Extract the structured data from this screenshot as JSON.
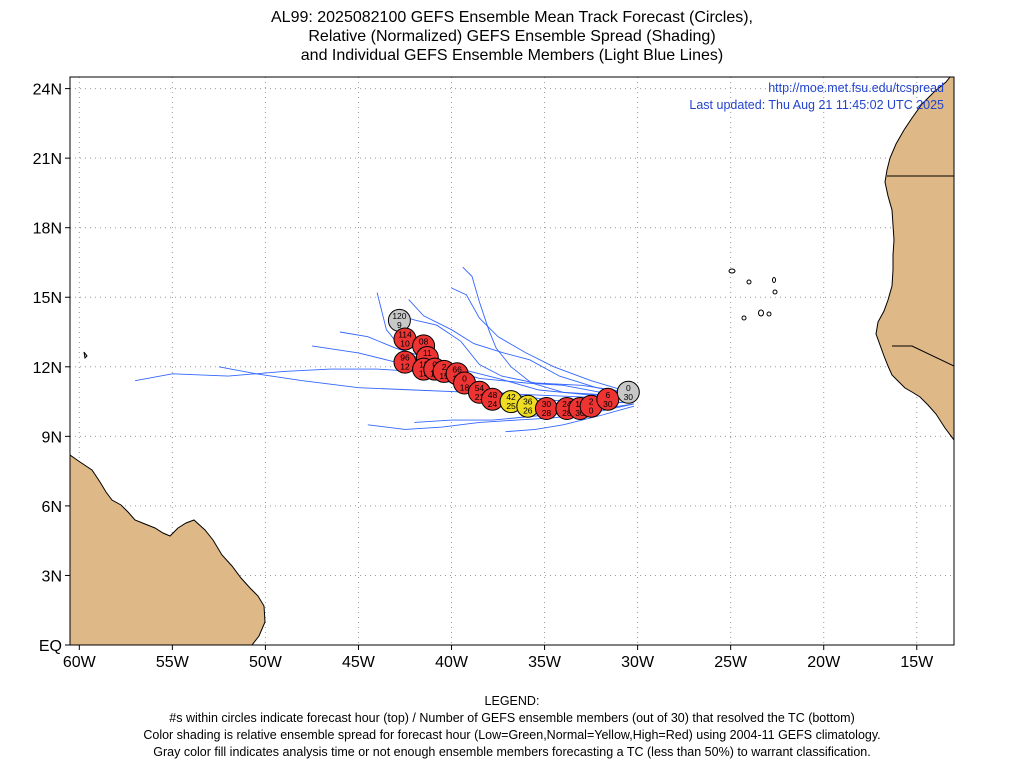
{
  "title": {
    "line1": "AL99: 2025082100 GEFS Ensemble Mean Track Forecast (Circles),",
    "line2": "Relative (Normalized) GEFS Ensemble Spread (Shading)",
    "line3": "and Individual GEFS Ensemble Members (Light Blue Lines)"
  },
  "annotations": {
    "url": "http://moe.met.fsu.edu/tcspread",
    "updated": "Last updated: Thu Aug 21 11:45:02 UTC 2025"
  },
  "axes": {
    "lon_range": [
      -60.5,
      -13
    ],
    "lat_range": [
      0,
      24.5
    ],
    "x_ticks": [
      {
        "lon": -60,
        "label": "60W"
      },
      {
        "lon": -55,
        "label": "55W"
      },
      {
        "lon": -50,
        "label": "50W"
      },
      {
        "lon": -45,
        "label": "45W"
      },
      {
        "lon": -40,
        "label": "40W"
      },
      {
        "lon": -35,
        "label": "35W"
      },
      {
        "lon": -30,
        "label": "30W"
      },
      {
        "lon": -25,
        "label": "25W"
      },
      {
        "lon": -20,
        "label": "20W"
      },
      {
        "lon": -15,
        "label": "15W"
      }
    ],
    "y_ticks": [
      {
        "lat": 0,
        "label": "EQ"
      },
      {
        "lat": 3,
        "label": "3N"
      },
      {
        "lat": 6,
        "label": "6N"
      },
      {
        "lat": 9,
        "label": "9N"
      },
      {
        "lat": 12,
        "label": "12N"
      },
      {
        "lat": 15,
        "label": "15N"
      },
      {
        "lat": 18,
        "label": "18N"
      },
      {
        "lat": 21,
        "label": "21N"
      },
      {
        "lat": 24,
        "label": "24N"
      }
    ],
    "grid": true
  },
  "colors": {
    "land": "#deb887",
    "member_track": "#3366ff",
    "spread_high": "#ee3333",
    "spread_normal": "#eedd22",
    "analysis": "#c8c8c8",
    "annotation": "#2244cc"
  },
  "chart_data": {
    "type": "scatter",
    "mean_track": [
      {
        "hour": "120",
        "members": "9",
        "lon": -42.8,
        "lat": 14.0,
        "spread": "gray"
      },
      {
        "hour": "114",
        "members": "10",
        "lon": -42.5,
        "lat": 13.2,
        "spread": "high"
      },
      {
        "hour": "08",
        "members": "11",
        "lon": -41.5,
        "lat": 12.9,
        "spread": "high"
      },
      {
        "hour": "11",
        "members": "11",
        "lon": -41.3,
        "lat": 12.4,
        "spread": "high"
      },
      {
        "hour": "96",
        "members": "12",
        "lon": -42.5,
        "lat": 12.2,
        "spread": "high"
      },
      {
        "hour": "11",
        "members": "13",
        "lon": -41.5,
        "lat": 11.9,
        "spread": "high"
      },
      {
        "hour": "0",
        "members": "13",
        "lon": -40.9,
        "lat": 11.9,
        "spread": "high"
      },
      {
        "hour": "2",
        "members": "15",
        "lon": -40.4,
        "lat": 11.8,
        "spread": "high"
      },
      {
        "hour": "66",
        "members": "15",
        "lon": -39.7,
        "lat": 11.7,
        "spread": "high"
      },
      {
        "hour": "0",
        "members": "18",
        "lon": -39.3,
        "lat": 11.3,
        "spread": "high"
      },
      {
        "hour": "54",
        "members": "21",
        "lon": -38.5,
        "lat": 10.9,
        "spread": "high"
      },
      {
        "hour": "48",
        "members": "24",
        "lon": -37.8,
        "lat": 10.6,
        "spread": "high"
      },
      {
        "hour": "42",
        "members": "25",
        "lon": -36.8,
        "lat": 10.5,
        "spread": "normal"
      },
      {
        "hour": "36",
        "members": "26",
        "lon": -35.9,
        "lat": 10.3,
        "spread": "normal"
      },
      {
        "hour": "30",
        "members": "28",
        "lon": -34.9,
        "lat": 10.2,
        "spread": "high"
      },
      {
        "hour": "24",
        "members": "28",
        "lon": -33.8,
        "lat": 10.2,
        "spread": "high"
      },
      {
        "hour": "18",
        "members": "30",
        "lon": -33.1,
        "lat": 10.2,
        "spread": "high"
      },
      {
        "hour": "2",
        "members": "0",
        "lon": -32.5,
        "lat": 10.3,
        "spread": "high"
      },
      {
        "hour": "6",
        "members": "30",
        "lon": -31.6,
        "lat": 10.6,
        "spread": "high"
      },
      {
        "hour": "0",
        "members": "30",
        "lon": -30.5,
        "lat": 10.9,
        "spread": "gray"
      }
    ],
    "member_tracks": [
      [
        [
          -30.2,
          10.5
        ],
        [
          -32,
          10.4
        ],
        [
          -34,
          10.2
        ],
        [
          -36,
          10.2
        ],
        [
          -38,
          10.8
        ],
        [
          -40,
          11.4
        ],
        [
          -42,
          11.8
        ],
        [
          -44,
          11.9
        ],
        [
          -46.5,
          11.9
        ],
        [
          -49,
          11.8
        ],
        [
          -52,
          11.6
        ],
        [
          -55,
          11.7
        ],
        [
          -57,
          11.4
        ]
      ],
      [
        [
          -30.2,
          10.6
        ],
        [
          -32,
          10.9
        ],
        [
          -34,
          11.2
        ],
        [
          -36,
          11.3
        ],
        [
          -38.5,
          11.5
        ],
        [
          -40.5,
          12.0
        ],
        [
          -42.5,
          12.6
        ],
        [
          -43.5,
          13.6
        ],
        [
          -44,
          15.2
        ]
      ],
      [
        [
          -30.3,
          10.8
        ],
        [
          -32.2,
          11.1
        ],
        [
          -34.2,
          11.6
        ],
        [
          -35.8,
          12.3
        ],
        [
          -37.2,
          12.6
        ],
        [
          -38.8,
          13.0
        ],
        [
          -40,
          13.6
        ],
        [
          -41.5,
          14.2
        ],
        [
          -42.3,
          14.9
        ]
      ],
      [
        [
          -30.4,
          10.9
        ],
        [
          -32.5,
          11.4
        ],
        [
          -34.5,
          12.0
        ],
        [
          -36,
          12.6
        ],
        [
          -37.5,
          13.3
        ],
        [
          -38.5,
          14.1
        ],
        [
          -39.2,
          15.1
        ],
        [
          -40,
          15.4
        ]
      ],
      [
        [
          -30.5,
          10.9
        ],
        [
          -33,
          11.2
        ],
        [
          -35.5,
          11.3
        ],
        [
          -37.3,
          11.6
        ],
        [
          -38.5,
          12.1
        ],
        [
          -39.5,
          13.1
        ],
        [
          -40.8,
          13.8
        ],
        [
          -41.9,
          14.0
        ],
        [
          -43.2,
          14.3
        ]
      ],
      [
        [
          -30.2,
          10.7
        ],
        [
          -32,
          10.8
        ],
        [
          -34,
          10.9
        ],
        [
          -35.7,
          11.3
        ],
        [
          -36.8,
          12.0
        ],
        [
          -37.6,
          12.8
        ],
        [
          -38,
          13.6
        ],
        [
          -38.5,
          14.8
        ],
        [
          -38.9,
          15.9
        ],
        [
          -39.4,
          16.3
        ]
      ],
      [
        [
          -30.2,
          10.4
        ],
        [
          -32.5,
          10.0
        ],
        [
          -34.5,
          9.8
        ],
        [
          -36.5,
          9.7
        ],
        [
          -38.5,
          9.6
        ],
        [
          -40.5,
          9.4
        ],
        [
          -42.5,
          9.3
        ],
        [
          -44.5,
          9.5
        ]
      ],
      [
        [
          -30.2,
          10.3
        ],
        [
          -32,
          9.9
        ],
        [
          -34,
          9.5
        ],
        [
          -35.5,
          9.3
        ],
        [
          -37.1,
          9.2
        ]
      ],
      [
        [
          -30.2,
          10.5
        ],
        [
          -32.5,
          10.4
        ],
        [
          -35,
          10.6
        ],
        [
          -37.5,
          10.9
        ],
        [
          -40,
          11.3
        ],
        [
          -42.5,
          12.1
        ],
        [
          -45,
          12.6
        ],
        [
          -47.5,
          12.9
        ]
      ],
      [
        [
          -30.2,
          10.6
        ],
        [
          -33,
          10.7
        ],
        [
          -36,
          10.8
        ],
        [
          -39,
          10.9
        ],
        [
          -42,
          11.0
        ],
        [
          -45,
          11.1
        ],
        [
          -48,
          11.4
        ],
        [
          -50.5,
          11.7
        ],
        [
          -52.5,
          12.0
        ]
      ],
      [
        [
          -30.3,
          10.7
        ],
        [
          -32.8,
          10.8
        ],
        [
          -35.3,
          11.0
        ],
        [
          -37.5,
          11.5
        ],
        [
          -39,
          11.8
        ],
        [
          -41,
          12.3
        ],
        [
          -43,
          12.8
        ],
        [
          -44.5,
          13.3
        ],
        [
          -46,
          13.5
        ]
      ],
      [
        [
          -30.2,
          10.4
        ],
        [
          -32.6,
          10.1
        ],
        [
          -35.2,
          9.9
        ],
        [
          -37.8,
          9.7
        ],
        [
          -40,
          9.7
        ],
        [
          -42,
          9.6
        ]
      ]
    ]
  },
  "legend": {
    "heading": "LEGEND:",
    "line1": "#s within circles indicate forecast hour (top) / Number of GEFS ensemble members (out of 30) that resolved the TC (bottom)",
    "line2": "Color shading is relative ensemble spread for forecast hour (Low=Green,Normal=Yellow,High=Red) using 2004-11 GEFS climatology.",
    "line3": "Gray color fill indicates analysis time or not enough ensemble members forecasting a TC (less than 50%) to warrant classification."
  }
}
